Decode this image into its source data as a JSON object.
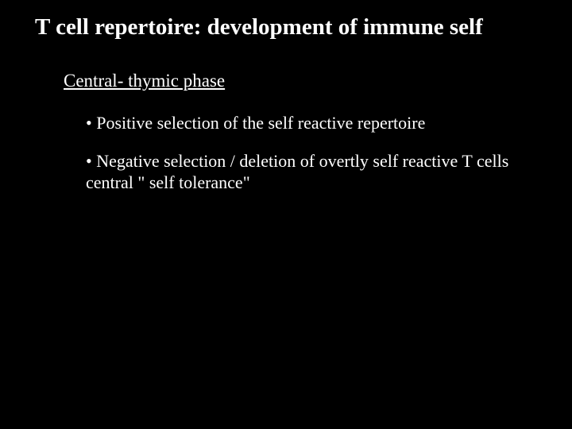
{
  "slide": {
    "background_color": "#000000",
    "text_color": "#ffffff",
    "font_family": "Times New Roman",
    "title": "T cell repertoire: development of immune self",
    "title_fontsize": 29,
    "subtitle": "Central- thymic phase",
    "subtitle_fontsize": 23,
    "bullets": [
      "• Positive selection of the self reactive repertoire",
      "• Negative selection / deletion of overtly self reactive T cells central \" self tolerance\""
    ],
    "bullet_fontsize": 22
  }
}
